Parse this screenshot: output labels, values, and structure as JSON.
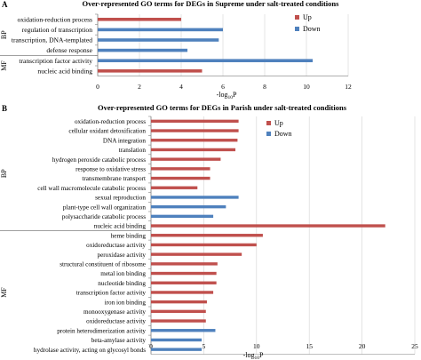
{
  "panels": [
    {
      "letter": "A"
    },
    {
      "letter": "B"
    }
  ],
  "chart_data": [
    {
      "type": "bar",
      "orientation": "horizontal",
      "title": "Over-represented GO terms for DEGs in Supreme under salt-treated conditions",
      "xlabel": "-log10P",
      "xlabel_main": "-log",
      "xlabel_sub": "10",
      "xlabel_tail": "P",
      "xlim": [
        0,
        12
      ],
      "xticks": [
        "0",
        "2",
        "4",
        "6",
        "8",
        "10",
        "12"
      ],
      "grid": true,
      "legend": {
        "position": "top-right",
        "items": [
          "Up",
          "Down"
        ]
      },
      "colors": {
        "Up": "#c0504d",
        "Down": "#4f81bd"
      },
      "groups": [
        {
          "name": "BP",
          "start": 0,
          "end": 3
        },
        {
          "name": "MF",
          "start": 4,
          "end": 5
        }
      ],
      "categories": [
        "oxidation-reduction process",
        "regulation of transcription",
        "transcription, DNA-templated",
        "defense response",
        "transcription factor activity",
        "nucleic acid binding"
      ],
      "series_per_category": [
        "Up",
        "Down",
        "Down",
        "Down",
        "Down",
        "Up"
      ],
      "values": [
        4.0,
        6.0,
        5.8,
        4.3,
        10.3,
        5.0
      ]
    },
    {
      "type": "bar",
      "orientation": "horizontal",
      "title": "Over-represented GO terms for DEGs in Parish under salt-treated conditions",
      "xlabel": "-log10P",
      "xlabel_main": "-log",
      "xlabel_sub": "10",
      "xlabel_tail": "P",
      "xlim": [
        0,
        25
      ],
      "xticks": [
        "0",
        "5",
        "10",
        "15",
        "20",
        "25"
      ],
      "grid": true,
      "legend": {
        "position": "top-right",
        "items": [
          "Up",
          "Down"
        ]
      },
      "colors": {
        "Up": "#c0504d",
        "Down": "#4f81bd"
      },
      "groups": [
        {
          "name": "BP",
          "start": 0,
          "end": 11
        },
        {
          "name": "MF",
          "start": 12,
          "end": 24
        }
      ],
      "categories": [
        "oxidation-reduction process",
        "cellular oxidant detoxification",
        "DNA integration",
        "translation",
        "hydrogen peroxide catabolic process",
        "response to oxidative stress",
        "transmembrane transport",
        "cell wall macromolecule catabolic process",
        "sexual reproduction",
        "plant-type cell wall organization",
        "polysaccharide catabolic process",
        "nucleic acid binding",
        "heme binding",
        "oxidoreductase activity",
        "peroxidase activity",
        "structural constituent of ribosome",
        "metal ion binding",
        "nucleotide binding",
        "transcription factor activity",
        "iron ion binding",
        "monooxygenase activity",
        "oxidoreductase activity",
        "protein heterodimerization activity",
        "beta-amylase activity",
        "hydrolase activity, acting on glycosyl bonds"
      ],
      "series_per_category": [
        "Up",
        "Up",
        "Up",
        "Up",
        "Up",
        "Up",
        "Up",
        "Up",
        "Down",
        "Down",
        "Down",
        "Up",
        "Up",
        "Up",
        "Up",
        "Up",
        "Up",
        "Up",
        "Up",
        "Up",
        "Up",
        "Up",
        "Down",
        "Down",
        "Down"
      ],
      "values": [
        8.3,
        8.3,
        8.2,
        8.0,
        6.6,
        5.6,
        5.6,
        4.4,
        8.3,
        7.1,
        5.9,
        22.2,
        10.6,
        10.0,
        8.6,
        6.3,
        6.2,
        6.2,
        5.9,
        5.3,
        5.2,
        5.2,
        6.1,
        4.8,
        4.8
      ]
    }
  ]
}
